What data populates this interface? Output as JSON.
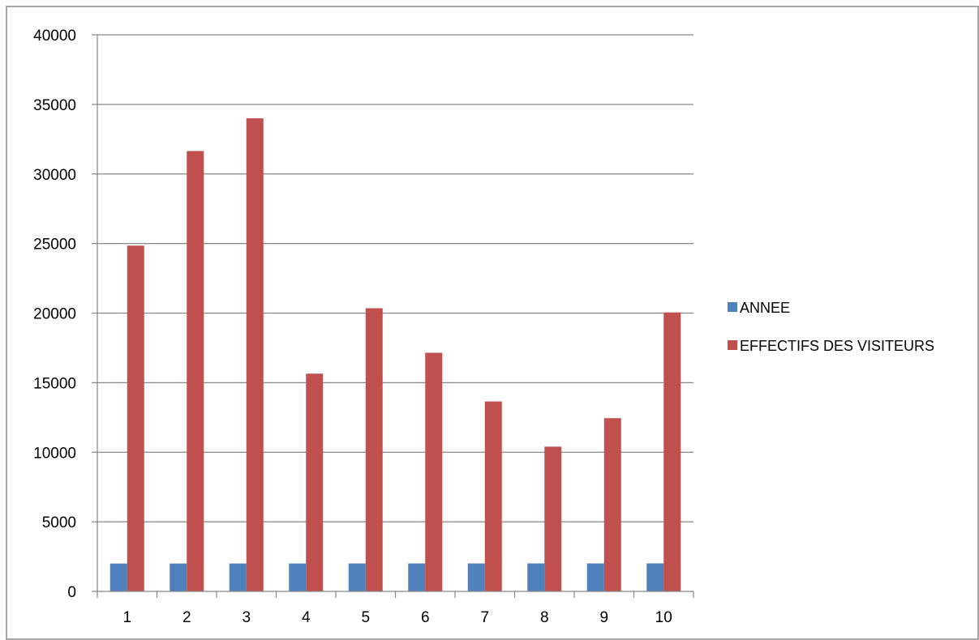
{
  "chart_data": {
    "type": "bar",
    "title": "",
    "xlabel": "",
    "ylabel": "",
    "categories": [
      "1",
      "2",
      "3",
      "4",
      "5",
      "6",
      "7",
      "8",
      "9",
      "10"
    ],
    "series": [
      {
        "name": "ANNEE",
        "color": "#4F81BD",
        "values": [
          2003,
          2004,
          2005,
          2006,
          2007,
          2008,
          2009,
          2010,
          2011,
          2012
        ]
      },
      {
        "name": "EFFECTIFS DES VISITEURS",
        "color": "#C0504D",
        "values": [
          24850,
          31650,
          34000,
          15650,
          20350,
          17150,
          13650,
          10400,
          12450,
          20050
        ]
      }
    ],
    "ylim": [
      0,
      40000
    ],
    "yticks": [
      0,
      5000,
      10000,
      15000,
      20000,
      25000,
      30000,
      35000,
      40000
    ],
    "grid": true,
    "legend_position": "right"
  }
}
